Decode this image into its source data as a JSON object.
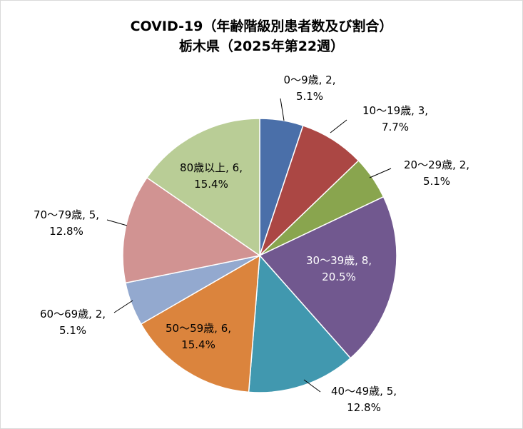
{
  "chart_data": {
    "type": "pie",
    "title_lines": [
      "COVID-19（年齢階級別患者数及び割合）",
      "栃木県（2025年第22週）"
    ],
    "slices": [
      {
        "label": "0～9歳",
        "value": 2,
        "percent": "5.1%",
        "color": "#4a6fa9"
      },
      {
        "label": "10～19歳",
        "value": 3,
        "percent": "7.7%",
        "color": "#ab4744"
      },
      {
        "label": "20～29歳",
        "value": 2,
        "percent": "5.1%",
        "color": "#89a54e"
      },
      {
        "label": "30～39歳",
        "value": 8,
        "percent": "20.5%",
        "color": "#71588f"
      },
      {
        "label": "40～49歳",
        "value": 5,
        "percent": "12.8%",
        "color": "#4198af"
      },
      {
        "label": "50～59歳",
        "value": 6,
        "percent": "15.4%",
        "color": "#db843d"
      },
      {
        "label": "60～69歳",
        "value": 2,
        "percent": "5.1%",
        "color": "#93a9cf"
      },
      {
        "label": "70～79歳",
        "value": 5,
        "percent": "12.8%",
        "color": "#d19392"
      },
      {
        "label": "80歳以上",
        "value": 6,
        "percent": "15.4%",
        "color": "#b9cd96"
      }
    ],
    "start_angle": "12 o'clock",
    "direction": "clockwise",
    "legend": "none",
    "data_labels": "category, value, percent"
  }
}
